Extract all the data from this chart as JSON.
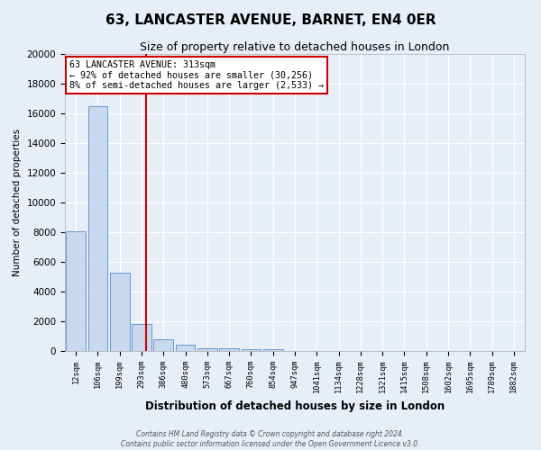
{
  "title": "63, LANCASTER AVENUE, BARNET, EN4 0ER",
  "subtitle": "Size of property relative to detached houses in London",
  "xlabel": "Distribution of detached houses by size in London",
  "ylabel": "Number of detached properties",
  "bar_labels": [
    "12sqm",
    "106sqm",
    "199sqm",
    "293sqm",
    "386sqm",
    "480sqm",
    "573sqm",
    "667sqm",
    "760sqm",
    "854sqm",
    "947sqm",
    "1041sqm",
    "1134sqm",
    "1228sqm",
    "1321sqm",
    "1415sqm",
    "1508sqm",
    "1602sqm",
    "1695sqm",
    "1789sqm",
    "1882sqm"
  ],
  "bar_values": [
    8050,
    16500,
    5300,
    1800,
    800,
    400,
    200,
    175,
    100,
    100,
    0,
    0,
    0,
    0,
    0,
    0,
    0,
    0,
    0,
    0,
    0
  ],
  "bar_color": "#c8d8ee",
  "bar_edge_color": "#6699cc",
  "ylim": [
    0,
    20000
  ],
  "yticks": [
    0,
    2000,
    4000,
    6000,
    8000,
    10000,
    12000,
    14000,
    16000,
    18000,
    20000
  ],
  "vline_color": "#cc0000",
  "annotation_line1": "63 LANCASTER AVENUE: 313sqm",
  "annotation_line2": "← 92% of detached houses are smaller (30,256)",
  "annotation_line3": "8% of semi-detached houses are larger (2,533) →",
  "annotation_box_color": "#cc0000",
  "annotation_facecolor": "#ffffff",
  "footer_line1": "Contains HM Land Registry data © Crown copyright and database right 2024.",
  "footer_line2": "Contains public sector information licensed under the Open Government Licence v3.0.",
  "background_color": "#e8eef8",
  "plot_bg_color": "#e8eef8",
  "title_fontsize": 11,
  "subtitle_fontsize": 9,
  "grid_color": "#ffffff"
}
